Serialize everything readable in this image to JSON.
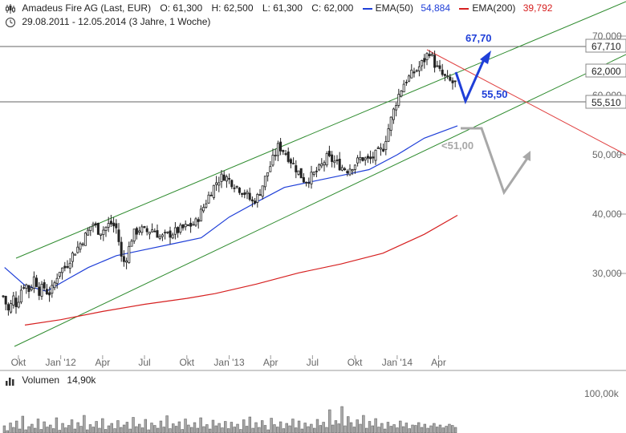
{
  "header": {
    "title": "Amadeus Fire AG (Last, EUR)",
    "open": "O: 61,300",
    "high": "H: 62,500",
    "low": "L: 61,300",
    "close": "C: 62,000",
    "ema50_label": "EMA(50)",
    "ema50_value": "54,884",
    "ema200_label": "EMA(200)",
    "ema200_value": "39,792",
    "date_range": "29.08.2011 - 12.05.2014 (3 Jahre, 1 Woche)"
  },
  "volume_panel": {
    "label": "Volumen",
    "value": "14,90k",
    "axis_tick": "100,00k"
  },
  "colors": {
    "channel": "#2e8b2e",
    "ema50": "#1f3fd8",
    "ema200": "#d62020",
    "resistance": "#e04040",
    "bull_arrow": "#1f3fd8",
    "bear_arrow": "#a8a8a8",
    "candle": "#222222",
    "volume_bar": "#a8a8a8"
  },
  "chart_data": {
    "type": "candlestick",
    "x_ticks": [
      "Okt",
      "Jan '12",
      "Apr",
      "Jul",
      "Okt",
      "Jan '13",
      "Apr",
      "Jul",
      "Okt",
      "Jan '14",
      "Apr"
    ],
    "y_ticks": [
      "30,000",
      "40,000",
      "50,000",
      "60,000",
      "70,000"
    ],
    "y_tick_values": [
      30,
      40,
      50,
      60,
      70
    ],
    "ylim": [
      21.3,
      71.5
    ],
    "price_labels": [
      "67,710",
      "62,000",
      "55,510"
    ],
    "price_label_values": [
      67.71,
      62.0,
      55.51
    ],
    "annotations": [
      {
        "text": "67,70",
        "color": "#1f3fd8"
      },
      {
        "text": "55,50",
        "color": "#1f3fd8"
      },
      {
        "text": "<51,00",
        "color": "#a8a8a8"
      }
    ],
    "close_path": [
      [
        "2011-09-01",
        25.5
      ],
      [
        "2011-09-10",
        23.5
      ],
      [
        "2011-09-20",
        26.0
      ],
      [
        "2011-09-28",
        24.5
      ],
      [
        "2011-10-05",
        27.0
      ],
      [
        "2011-10-15",
        28.5
      ],
      [
        "2011-10-25",
        27.0
      ],
      [
        "2011-11-05",
        29.5
      ],
      [
        "2011-11-15",
        27.0
      ],
      [
        "2011-11-25",
        27.8
      ],
      [
        "2011-12-05",
        26.5
      ],
      [
        "2011-12-15",
        27.5
      ],
      [
        "2011-12-28",
        30.5
      ],
      [
        "2012-01-10",
        31.0
      ],
      [
        "2012-01-25",
        33.0
      ],
      [
        "2012-02-08",
        34.5
      ],
      [
        "2012-02-25",
        36.5
      ],
      [
        "2012-03-10",
        38.5
      ],
      [
        "2012-03-25",
        37.0
      ],
      [
        "2012-04-05",
        37.5
      ],
      [
        "2012-04-18",
        38.5
      ],
      [
        "2012-05-02",
        37.5
      ],
      [
        "2012-05-14",
        31.5
      ],
      [
        "2012-05-24",
        33.0
      ],
      [
        "2012-06-05",
        36.5
      ],
      [
        "2012-06-20",
        37.5
      ],
      [
        "2012-07-05",
        37.0
      ],
      [
        "2012-07-20",
        37.5
      ],
      [
        "2012-08-05",
        36.0
      ],
      [
        "2012-08-20",
        36.5
      ],
      [
        "2012-09-05",
        37.0
      ],
      [
        "2012-09-20",
        37.5
      ],
      [
        "2012-10-05",
        38.0
      ],
      [
        "2012-10-20",
        38.5
      ],
      [
        "2012-11-05",
        41.0
      ],
      [
        "2012-11-20",
        43.5
      ],
      [
        "2012-12-05",
        45.5
      ],
      [
        "2012-12-20",
        46.5
      ],
      [
        "2013-01-05",
        45.5
      ],
      [
        "2013-01-20",
        44.5
      ],
      [
        "2013-02-05",
        43.5
      ],
      [
        "2013-02-20",
        42.0
      ],
      [
        "2013-03-05",
        43.0
      ],
      [
        "2013-03-20",
        46.0
      ],
      [
        "2013-04-05",
        49.0
      ],
      [
        "2013-04-18",
        51.5
      ],
      [
        "2013-05-02",
        50.5
      ],
      [
        "2013-05-15",
        49.0
      ],
      [
        "2013-06-01",
        47.0
      ],
      [
        "2013-06-15",
        45.5
      ],
      [
        "2013-07-01",
        46.5
      ],
      [
        "2013-07-15",
        47.5
      ],
      [
        "2013-08-01",
        49.5
      ],
      [
        "2013-08-15",
        49.0
      ],
      [
        "2013-09-01",
        48.0
      ],
      [
        "2013-09-15",
        47.5
      ],
      [
        "2013-10-01",
        48.5
      ],
      [
        "2013-10-15",
        49.5
      ],
      [
        "2013-11-01",
        49.0
      ],
      [
        "2013-11-15",
        50.0
      ],
      [
        "2013-12-01",
        51.0
      ],
      [
        "2013-12-15",
        55.0
      ],
      [
        "2014-01-01",
        59.5
      ],
      [
        "2014-01-15",
        62.0
      ],
      [
        "2014-02-01",
        63.5
      ],
      [
        "2014-02-15",
        64.5
      ],
      [
        "2014-03-01",
        66.0
      ],
      [
        "2014-03-12",
        67.5
      ],
      [
        "2014-03-25",
        65.0
      ],
      [
        "2014-04-08",
        63.5
      ],
      [
        "2014-04-22",
        62.5
      ],
      [
        "2014-05-05",
        62.0
      ],
      [
        "2014-05-12",
        62.0
      ]
    ],
    "ema50": [
      [
        "2011-09-01",
        31.0
      ],
      [
        "2011-10-15",
        28.0
      ],
      [
        "2011-12-01",
        27.0
      ],
      [
        "2012-01-15",
        29.0
      ],
      [
        "2012-03-01",
        31.0
      ],
      [
        "2012-05-01",
        33.0
      ],
      [
        "2012-07-01",
        34.0
      ],
      [
        "2012-09-01",
        35.0
      ],
      [
        "2012-11-01",
        36.0
      ],
      [
        "2013-01-01",
        39.5
      ],
      [
        "2013-03-01",
        42.0
      ],
      [
        "2013-05-01",
        44.5
      ],
      [
        "2013-07-01",
        45.5
      ],
      [
        "2013-09-01",
        46.5
      ],
      [
        "2013-11-01",
        47.5
      ],
      [
        "2014-01-01",
        50.0
      ],
      [
        "2014-03-01",
        52.8
      ],
      [
        "2014-05-12",
        54.884
      ]
    ],
    "ema200": [
      [
        "2011-10-15",
        21.3
      ],
      [
        "2012-01-01",
        22.2
      ],
      [
        "2012-04-01",
        23.6
      ],
      [
        "2012-07-01",
        24.8
      ],
      [
        "2012-10-01",
        25.8
      ],
      [
        "2012-12-01",
        26.6
      ],
      [
        "2013-03-01",
        28.2
      ],
      [
        "2013-06-01",
        30.1
      ],
      [
        "2013-09-01",
        31.6
      ],
      [
        "2013-12-01",
        33.4
      ],
      [
        "2014-03-01",
        36.6
      ],
      [
        "2014-05-12",
        39.792
      ]
    ],
    "volume_k": [
      18,
      6,
      25,
      14,
      30,
      10,
      42,
      8,
      16,
      22,
      12,
      35,
      9,
      28,
      15,
      20,
      11,
      38,
      7,
      24,
      13,
      19,
      33,
      10,
      26,
      17,
      44,
      8,
      21,
      15,
      29,
      12,
      36,
      9,
      18,
      24,
      11,
      31,
      14,
      20,
      27,
      10,
      39,
      16,
      22,
      13,
      34,
      8,
      25,
      19,
      12,
      30,
      15,
      43,
      11,
      23,
      17,
      28,
      9,
      35,
      20,
      14,
      26,
      12,
      38,
      16,
      21,
      10,
      32,
      18,
      24,
      13,
      29,
      11,
      27,
      15,
      22,
      9,
      33,
      17,
      40,
      12,
      26,
      14,
      31,
      19,
      8,
      37,
      21,
      15,
      28,
      11,
      24,
      18,
      35,
      13,
      30,
      10,
      25,
      16,
      22,
      12,
      34,
      19,
      27,
      14,
      58,
      20,
      31,
      23,
      66,
      18,
      41,
      26,
      15,
      33,
      22,
      44,
      12,
      29,
      18,
      36,
      15,
      24,
      10,
      27,
      17,
      21,
      13,
      30,
      16,
      25,
      11,
      20,
      19,
      26,
      14,
      22,
      12,
      18,
      24,
      15,
      20,
      13,
      17,
      22,
      19,
      14
    ]
  }
}
